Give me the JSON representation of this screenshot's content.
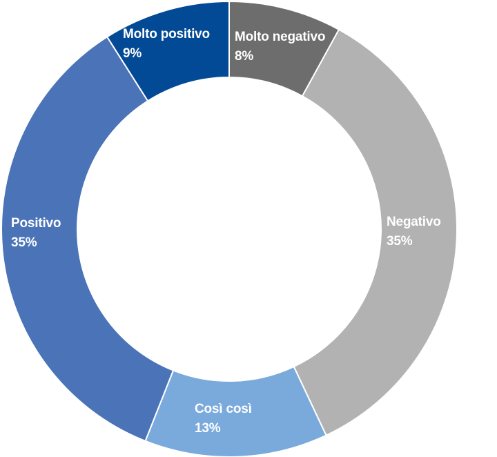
{
  "chart_data": {
    "type": "pie",
    "donut": true,
    "categories": [
      "Molto negativo",
      "Negativo",
      "Così così",
      "Positivo",
      "Molto positivo"
    ],
    "values": [
      8,
      35,
      13,
      35,
      9
    ],
    "value_labels": [
      "8%",
      "35%",
      "13%",
      "35%",
      "9%"
    ],
    "colors": [
      "#6d6d6d",
      "#b2b2b2",
      "#7aaadc",
      "#4a73b8",
      "#034a96"
    ],
    "start_angle": "12 o'clock",
    "direction": "clockwise",
    "legend": "none",
    "title": ""
  }
}
